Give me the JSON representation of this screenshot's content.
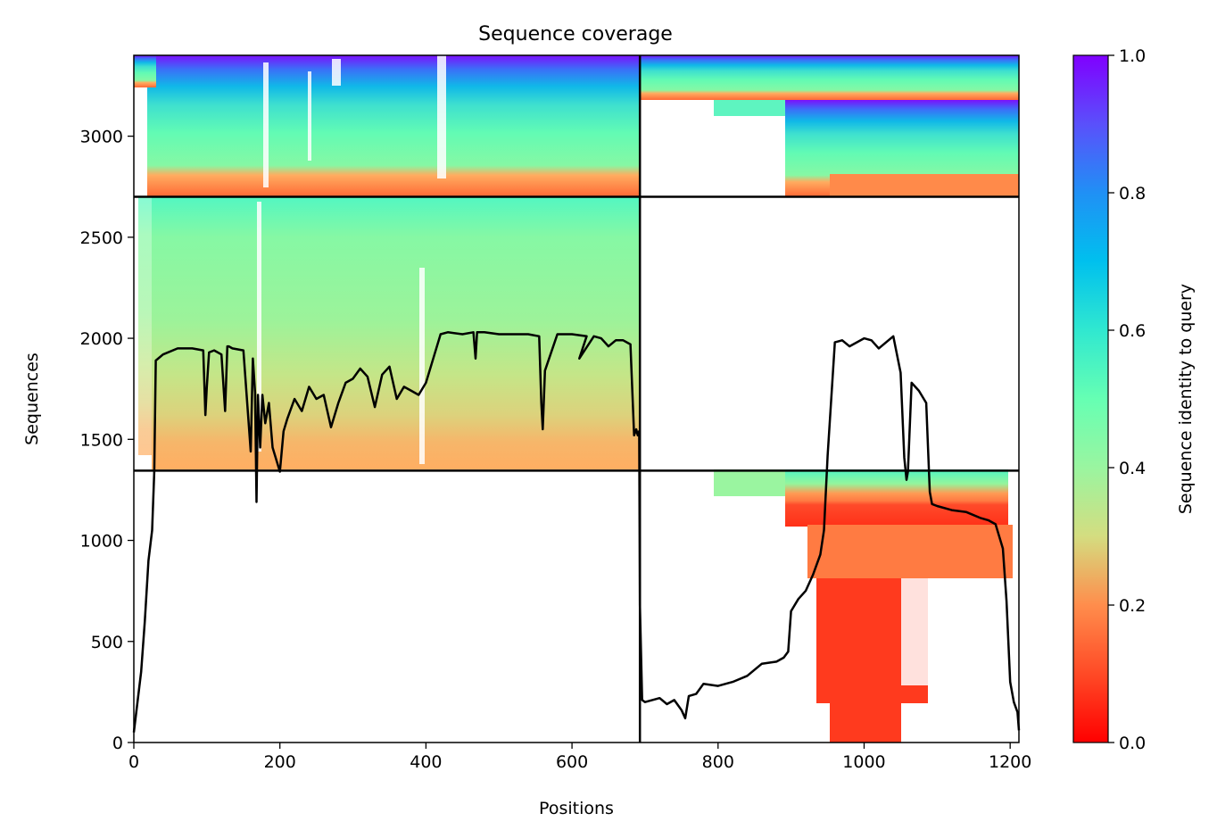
{
  "chart_data": {
    "type": "heatmap",
    "title": "Sequence coverage",
    "xlabel": "Positions",
    "ylabel": "Sequences",
    "xlim": [
      0,
      1212
    ],
    "ylim": [
      0,
      3400
    ],
    "x_ticks": [
      0,
      200,
      400,
      600,
      800,
      1000,
      1200
    ],
    "y_ticks": [
      0,
      500,
      1000,
      1500,
      2000,
      2500,
      3000
    ],
    "grid": false,
    "colorbar": {
      "label": "Sequence identity to query",
      "range": [
        0,
        1
      ],
      "ticks": [
        "0.0",
        "0.2",
        "0.4",
        "0.6",
        "0.8",
        "1.0"
      ],
      "colormap": "rainbow_r"
    },
    "chain_boundaries": {
      "x": [
        693
      ],
      "y": [
        1345,
        2700
      ]
    },
    "blocks": [
      {
        "x": [
          0,
          693
        ],
        "y": [
          2700,
          3400
        ],
        "identity_range": [
          0.25,
          1.0
        ]
      },
      {
        "x": [
          693,
          1212
        ],
        "y": [
          2700,
          3400
        ],
        "identity_range": [
          0.2,
          1.0
        ]
      },
      {
        "x": [
          0,
          693
        ],
        "y": [
          1345,
          2700
        ],
        "identity_range": [
          0.25,
          0.6
        ]
      },
      {
        "x": [
          693,
          1212
        ],
        "y": [
          0,
          1345
        ],
        "identity_range": [
          0.05,
          0.55
        ]
      }
    ],
    "series": [
      {
        "type": "line",
        "x": [
          0,
          5,
          10,
          15,
          20,
          25,
          28,
          30,
          40,
          60,
          80,
          95,
          98,
          100,
          103,
          110,
          120,
          125,
          128,
          130,
          135,
          150,
          160,
          163,
          166,
          168,
          170,
          173,
          176,
          180,
          185,
          190,
          200,
          205,
          210,
          220,
          230,
          240,
          250,
          260,
          265,
          270,
          280,
          290,
          300,
          310,
          320,
          330,
          340,
          350,
          360,
          370,
          380,
          390,
          400,
          410,
          420,
          430,
          450,
          465,
          468,
          470,
          480,
          500,
          540,
          555,
          558,
          560,
          563,
          580,
          600,
          620,
          620,
          610,
          630,
          640,
          650,
          660,
          670,
          680,
          685,
          688,
          690,
          692,
          693,
          696,
          700,
          720,
          730,
          740,
          750,
          755,
          760,
          770,
          780,
          800,
          820,
          840,
          860,
          880,
          890,
          896,
          900,
          910,
          920,
          930,
          940,
          945,
          950,
          960,
          970,
          980,
          1000,
          1010,
          1020,
          1040,
          1050,
          1055,
          1058,
          1060,
          1065,
          1075,
          1085,
          1090,
          1093,
          1100,
          1120,
          1140,
          1160,
          1170,
          1180,
          1185,
          1190,
          1195,
          1200,
          1205,
          1210,
          1212
        ],
        "y": [
          50,
          200,
          350,
          600,
          900,
          1050,
          1340,
          1890,
          1920,
          1950,
          1950,
          1940,
          1620,
          1760,
          1930,
          1940,
          1920,
          1640,
          1960,
          1960,
          1950,
          1940,
          1440,
          1900,
          1730,
          1190,
          1720,
          1460,
          1720,
          1580,
          1680,
          1460,
          1340,
          1540,
          1600,
          1700,
          1640,
          1760,
          1700,
          1720,
          1640,
          1560,
          1680,
          1780,
          1800,
          1850,
          1810,
          1660,
          1820,
          1860,
          1700,
          1760,
          1740,
          1720,
          1780,
          1900,
          2020,
          2030,
          2020,
          2030,
          1900,
          2030,
          2030,
          2020,
          2020,
          2010,
          1680,
          1550,
          1840,
          2020,
          2020,
          2010,
          2010,
          1900,
          2010,
          2000,
          1960,
          1990,
          1990,
          1970,
          1520,
          1550,
          1520,
          1540,
          680,
          210,
          200,
          220,
          190,
          210,
          160,
          120,
          230,
          240,
          290,
          280,
          300,
          330,
          390,
          400,
          420,
          450,
          650,
          710,
          750,
          830,
          930,
          1050,
          1420,
          1980,
          1990,
          1960,
          2000,
          1990,
          1950,
          2010,
          1830,
          1410,
          1300,
          1340,
          1780,
          1740,
          1680,
          1240,
          1180,
          1170,
          1150,
          1140,
          1110,
          1100,
          1080,
          1020,
          960,
          700,
          300,
          200,
          150,
          60
        ]
      }
    ]
  }
}
